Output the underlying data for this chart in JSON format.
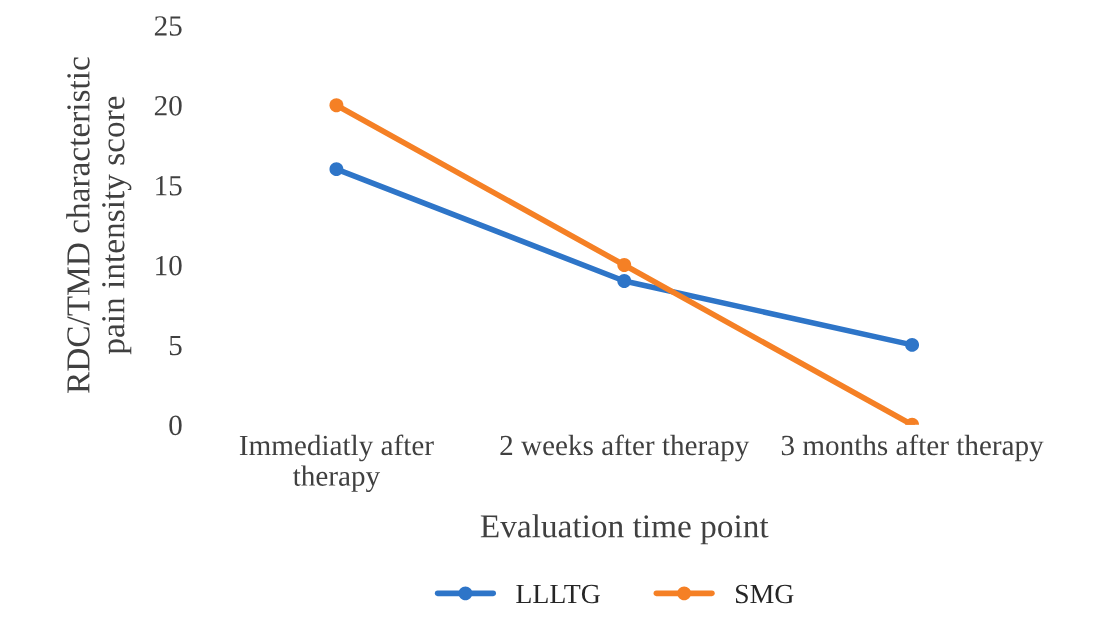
{
  "chart_data": {
    "type": "line",
    "categories": [
      "Immediatly after\ntherapy",
      "2 weeks after therapy",
      "3 months after therapy"
    ],
    "series": [
      {
        "name": "LLLTG",
        "color": "#2e75c8",
        "values": [
          16,
          9,
          5
        ]
      },
      {
        "name": "SMG",
        "color": "#f58025",
        "values": [
          20,
          10,
          0
        ]
      }
    ],
    "xlabel": "Evaluation time point",
    "ylabel": "RDC/TMD characteristic\npain intensity score",
    "ylim": [
      0,
      25
    ],
    "yticks": [
      0,
      5,
      10,
      15,
      20,
      25
    ],
    "grid": false,
    "legend": "bottom",
    "marker": "circle",
    "line_style": "solid"
  }
}
